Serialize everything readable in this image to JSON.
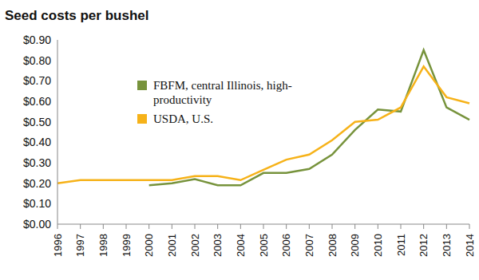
{
  "chart_data": {
    "type": "line",
    "title": "Seed costs per bushel",
    "categories": [
      "1996",
      "1997",
      "1998",
      "1999",
      "2000",
      "2001",
      "2002",
      "2003",
      "2004",
      "2005",
      "2006",
      "2007",
      "2008",
      "2009",
      "2010",
      "2011",
      "2012",
      "2013",
      "2014"
    ],
    "series": [
      {
        "name": "FBFM, central Illinois, high-productivity",
        "color": "#77933c",
        "values": [
          null,
          null,
          null,
          null,
          0.19,
          0.2,
          0.22,
          0.19,
          0.19,
          0.25,
          0.25,
          0.27,
          0.34,
          0.46,
          0.56,
          0.55,
          0.85,
          0.57,
          0.51
        ]
      },
      {
        "name": "USDA, U.S.",
        "color": "#f6b219",
        "values": [
          0.2,
          0.215,
          0.215,
          0.215,
          0.215,
          0.215,
          0.235,
          0.235,
          0.215,
          0.265,
          0.315,
          0.34,
          0.41,
          0.5,
          0.51,
          0.57,
          0.77,
          0.62,
          0.59
        ]
      }
    ],
    "ylim": [
      0,
      0.9
    ],
    "yticks": [
      {
        "value": 0,
        "label": "$0.00"
      },
      {
        "value": 0.1,
        "label": "$0.10"
      },
      {
        "value": 0.2,
        "label": "$0.20"
      },
      {
        "value": 0.3,
        "label": "$0.30"
      },
      {
        "value": 0.4,
        "label": "$0.40"
      },
      {
        "value": 0.5,
        "label": "$0.50"
      },
      {
        "value": 0.6,
        "label": "$0.60"
      },
      {
        "value": 0.7,
        "label": "$0.70"
      },
      {
        "value": 0.8,
        "label": "$0.80"
      },
      {
        "value": 0.9,
        "label": "$0.90"
      }
    ],
    "grid": false,
    "legend": "upper left"
  }
}
